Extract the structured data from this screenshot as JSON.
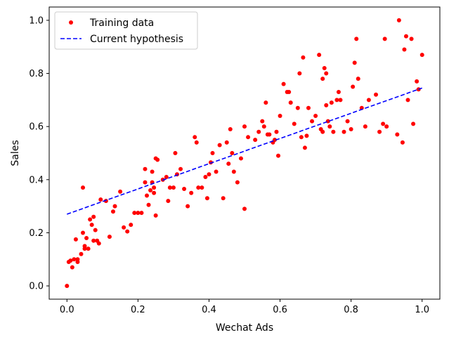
{
  "chart_data": {
    "type": "scatter",
    "xlabel": "Wechat Ads",
    "ylabel": "Sales",
    "xlim": [
      -0.05,
      1.05
    ],
    "ylim": [
      -0.05,
      1.05
    ],
    "x_ticks": [
      0.0,
      0.2,
      0.4,
      0.6,
      0.8,
      1.0
    ],
    "y_ticks": [
      0.0,
      0.2,
      0.4,
      0.6,
      0.8,
      1.0
    ],
    "x_tick_labels": [
      "0.0",
      "0.2",
      "0.4",
      "0.6",
      "0.8",
      "1.0"
    ],
    "y_tick_labels": [
      "0.0",
      "0.2",
      "0.4",
      "0.6",
      "0.8",
      "1.0"
    ],
    "grid": false,
    "legend_position": "top-left",
    "series": [
      {
        "name": "Training data",
        "kind": "scatter",
        "color": "#ff0000",
        "points": [
          [
            0.0,
            0.0
          ],
          [
            0.005,
            0.09
          ],
          [
            0.01,
            0.095
          ],
          [
            0.015,
            0.07
          ],
          [
            0.02,
            0.1
          ],
          [
            0.025,
            0.175
          ],
          [
            0.03,
            0.09
          ],
          [
            0.03,
            0.1
          ],
          [
            0.04,
            0.12
          ],
          [
            0.045,
            0.37
          ],
          [
            0.045,
            0.2
          ],
          [
            0.05,
            0.15
          ],
          [
            0.05,
            0.14
          ],
          [
            0.055,
            0.18
          ],
          [
            0.06,
            0.14
          ],
          [
            0.065,
            0.25
          ],
          [
            0.07,
            0.23
          ],
          [
            0.075,
            0.26
          ],
          [
            0.075,
            0.17
          ],
          [
            0.08,
            0.21
          ],
          [
            0.085,
            0.17
          ],
          [
            0.09,
            0.16
          ],
          [
            0.095,
            0.325
          ],
          [
            0.11,
            0.32
          ],
          [
            0.12,
            0.185
          ],
          [
            0.13,
            0.28
          ],
          [
            0.135,
            0.3
          ],
          [
            0.15,
            0.355
          ],
          [
            0.16,
            0.22
          ],
          [
            0.17,
            0.205
          ],
          [
            0.18,
            0.23
          ],
          [
            0.19,
            0.275
          ],
          [
            0.2,
            0.275
          ],
          [
            0.21,
            0.275
          ],
          [
            0.22,
            0.39
          ],
          [
            0.22,
            0.44
          ],
          [
            0.225,
            0.34
          ],
          [
            0.23,
            0.305
          ],
          [
            0.235,
            0.36
          ],
          [
            0.24,
            0.39
          ],
          [
            0.24,
            0.43
          ],
          [
            0.245,
            0.35
          ],
          [
            0.245,
            0.37
          ],
          [
            0.25,
            0.48
          ],
          [
            0.25,
            0.265
          ],
          [
            0.255,
            0.475
          ],
          [
            0.27,
            0.4
          ],
          [
            0.28,
            0.41
          ],
          [
            0.285,
            0.32
          ],
          [
            0.29,
            0.37
          ],
          [
            0.3,
            0.37
          ],
          [
            0.305,
            0.5
          ],
          [
            0.31,
            0.42
          ],
          [
            0.32,
            0.44
          ],
          [
            0.33,
            0.365
          ],
          [
            0.34,
            0.3
          ],
          [
            0.35,
            0.35
          ],
          [
            0.36,
            0.56
          ],
          [
            0.365,
            0.54
          ],
          [
            0.37,
            0.37
          ],
          [
            0.38,
            0.37
          ],
          [
            0.39,
            0.41
          ],
          [
            0.395,
            0.33
          ],
          [
            0.4,
            0.42
          ],
          [
            0.405,
            0.465
          ],
          [
            0.41,
            0.5
          ],
          [
            0.42,
            0.43
          ],
          [
            0.43,
            0.53
          ],
          [
            0.44,
            0.33
          ],
          [
            0.45,
            0.54
          ],
          [
            0.455,
            0.46
          ],
          [
            0.46,
            0.59
          ],
          [
            0.465,
            0.5
          ],
          [
            0.47,
            0.43
          ],
          [
            0.48,
            0.39
          ],
          [
            0.49,
            0.48
          ],
          [
            0.5,
            0.29
          ],
          [
            0.5,
            0.6
          ],
          [
            0.51,
            0.56
          ],
          [
            0.53,
            0.55
          ],
          [
            0.54,
            0.58
          ],
          [
            0.55,
            0.62
          ],
          [
            0.555,
            0.6
          ],
          [
            0.56,
            0.69
          ],
          [
            0.565,
            0.57
          ],
          [
            0.57,
            0.57
          ],
          [
            0.58,
            0.54
          ],
          [
            0.585,
            0.55
          ],
          [
            0.59,
            0.58
          ],
          [
            0.595,
            0.49
          ],
          [
            0.6,
            0.64
          ],
          [
            0.61,
            0.76
          ],
          [
            0.62,
            0.73
          ],
          [
            0.625,
            0.73
          ],
          [
            0.63,
            0.69
          ],
          [
            0.64,
            0.61
          ],
          [
            0.65,
            0.67
          ],
          [
            0.655,
            0.8
          ],
          [
            0.66,
            0.56
          ],
          [
            0.665,
            0.86
          ],
          [
            0.67,
            0.52
          ],
          [
            0.675,
            0.565
          ],
          [
            0.68,
            0.67
          ],
          [
            0.69,
            0.62
          ],
          [
            0.7,
            0.64
          ],
          [
            0.71,
            0.87
          ],
          [
            0.715,
            0.59
          ],
          [
            0.72,
            0.78
          ],
          [
            0.72,
            0.58
          ],
          [
            0.725,
            0.82
          ],
          [
            0.73,
            0.8
          ],
          [
            0.73,
            0.68
          ],
          [
            0.735,
            0.62
          ],
          [
            0.74,
            0.6
          ],
          [
            0.745,
            0.69
          ],
          [
            0.75,
            0.58
          ],
          [
            0.76,
            0.7
          ],
          [
            0.765,
            0.73
          ],
          [
            0.77,
            0.7
          ],
          [
            0.78,
            0.58
          ],
          [
            0.79,
            0.62
          ],
          [
            0.8,
            0.59
          ],
          [
            0.805,
            0.75
          ],
          [
            0.81,
            0.84
          ],
          [
            0.815,
            0.93
          ],
          [
            0.82,
            0.78
          ],
          [
            0.83,
            0.67
          ],
          [
            0.84,
            0.6
          ],
          [
            0.85,
            0.7
          ],
          [
            0.87,
            0.72
          ],
          [
            0.88,
            0.58
          ],
          [
            0.89,
            0.61
          ],
          [
            0.895,
            0.93
          ],
          [
            0.9,
            0.6
          ],
          [
            0.93,
            0.57
          ],
          [
            0.935,
            1.0
          ],
          [
            0.945,
            0.54
          ],
          [
            0.95,
            0.89
          ],
          [
            0.955,
            0.94
          ],
          [
            0.96,
            0.7
          ],
          [
            0.97,
            0.93
          ],
          [
            0.975,
            0.61
          ],
          [
            0.985,
            0.77
          ],
          [
            0.99,
            0.74
          ],
          [
            1.0,
            0.87
          ]
        ]
      },
      {
        "name": "Current hypothesis",
        "kind": "line",
        "style": "dashed",
        "color": "#0000ff",
        "points": [
          [
            0.0,
            0.27
          ],
          [
            1.0,
            0.745
          ]
        ]
      }
    ]
  }
}
